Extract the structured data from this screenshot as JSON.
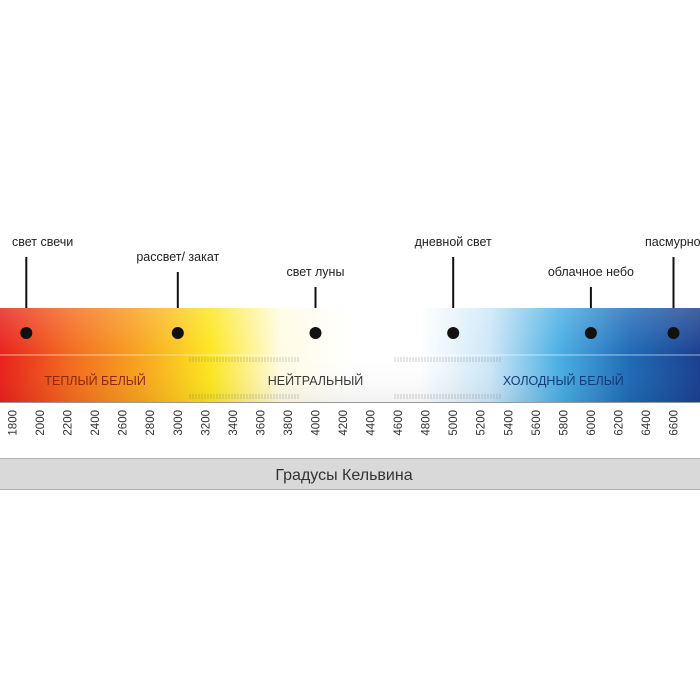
{
  "scale": {
    "gradient_colors": [
      "#e8211c",
      "#f36a1e",
      "#f8a41f",
      "#fde61e",
      "#fffbe3",
      "#ffffff",
      "#ffffff",
      "#cde7f7",
      "#49aee3",
      "#1f6ab6",
      "#1a3f8f"
    ],
    "min": 1800,
    "max": 6600,
    "ticks": [
      "1800",
      "2000",
      "2200",
      "2400",
      "2600",
      "2800",
      "3000",
      "3200",
      "3400",
      "3600",
      "3800",
      "4000",
      "4200",
      "4400",
      "4600",
      "4800",
      "5000",
      "5200",
      "5400",
      "5600",
      "5800",
      "6000",
      "6200",
      "6400",
      "6600"
    ]
  },
  "markers": [
    {
      "label": "свет свечи",
      "kelvin": 1900
    },
    {
      "label": "рассвет/ закат",
      "kelvin": 3000
    },
    {
      "label": "свет луны",
      "kelvin": 4000
    },
    {
      "label": "дневной свет",
      "kelvin": 5000
    },
    {
      "label": "облачное небо",
      "kelvin": 6000
    },
    {
      "label": "пасмурно",
      "kelvin": 6600
    }
  ],
  "zones": [
    {
      "label": "ТЕПЛЫЙ БЕЛЫЙ",
      "kelvin": 2400,
      "color": "#8b2a10"
    },
    {
      "label": "НЕЙТРАЛЬНЫЙ",
      "kelvin": 4000,
      "color": "#3a3a3a"
    },
    {
      "label": "ХОЛОДНЫЙ БЕЛЫЙ",
      "kelvin": 5800,
      "color": "#173a78"
    }
  ],
  "footer": {
    "label": "Градусы Кельвина"
  }
}
